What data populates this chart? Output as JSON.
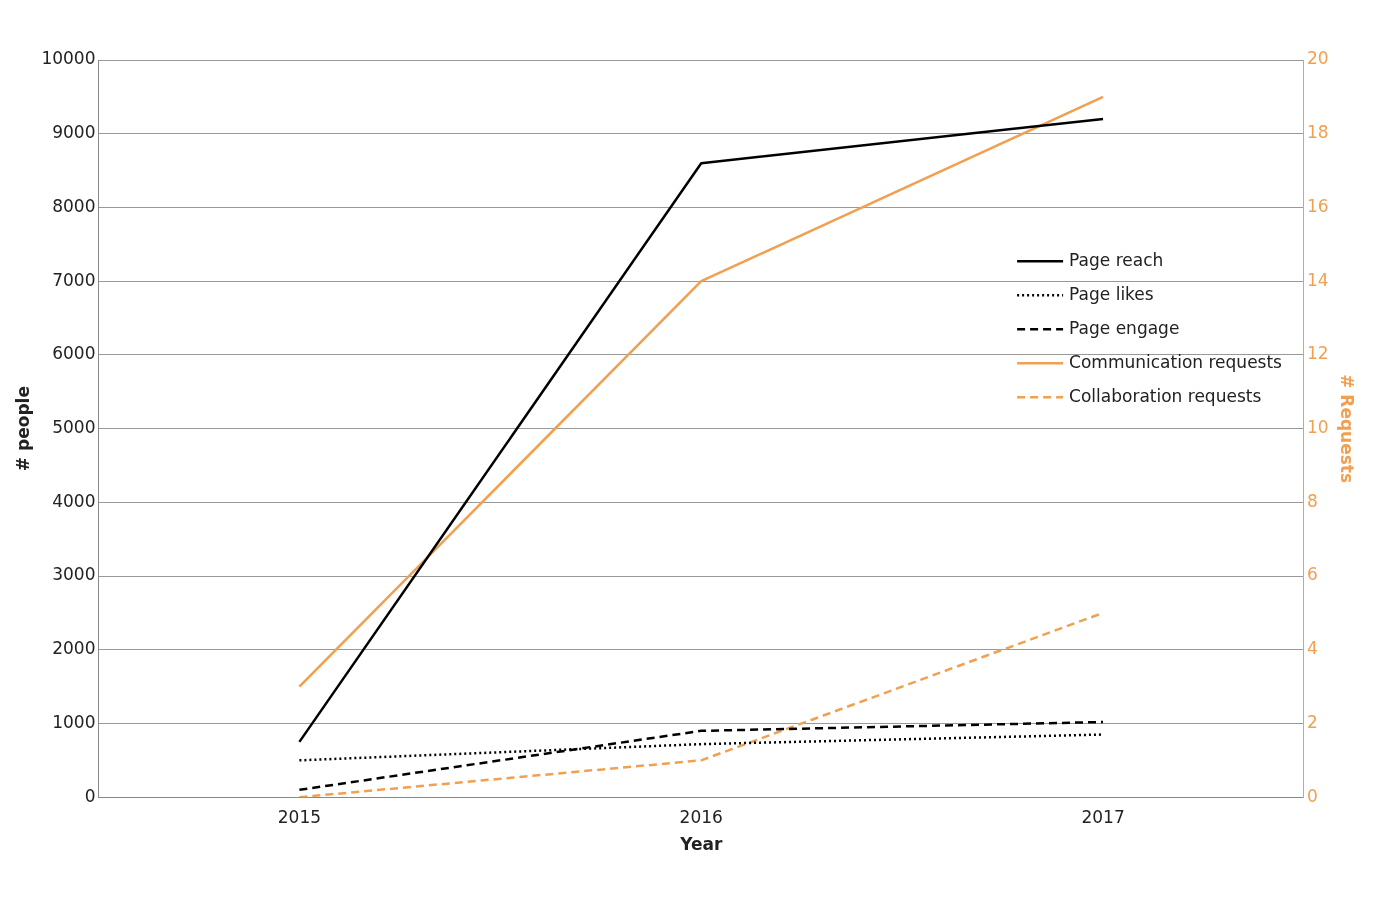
{
  "chart_data": {
    "type": "line",
    "xlabel": "Year",
    "ylabel": "# people",
    "y2label": "# Requests",
    "categories": [
      "2015",
      "2016",
      "2017"
    ],
    "series": [
      {
        "name": "Page reach",
        "color": "#000000",
        "values": [
          750,
          8600,
          9200
        ],
        "line_style": "solid"
      },
      {
        "name": "Page likes",
        "color": "#000000",
        "values": [
          500,
          720,
          850
        ],
        "line_style": "dotted"
      },
      {
        "name": "Page engage",
        "color": "#000000",
        "values": [
          100,
          900,
          1020
        ],
        "line_style": "dashed"
      },
      {
        "name": "Communication requests",
        "color": "#f0a050",
        "values": [
          3,
          14,
          19
        ],
        "line_style": "solid",
        "axis": "y2"
      },
      {
        "name": "Collaboration requests",
        "color": "#f0a050",
        "values": [
          0,
          1,
          5
        ],
        "line_style": "dashed",
        "axis": "y2"
      }
    ],
    "ylim": [
      0,
      10000
    ],
    "yticks": [
      0,
      1000,
      2000,
      3000,
      4000,
      5000,
      6000,
      7000,
      8000,
      9000,
      10000
    ],
    "y2lim": [
      0,
      20
    ],
    "y2ticks": [
      0,
      2,
      4,
      6,
      8,
      10,
      12,
      14,
      16,
      18,
      20
    ],
    "grid": "y",
    "legend": "right",
    "marker": "none"
  }
}
